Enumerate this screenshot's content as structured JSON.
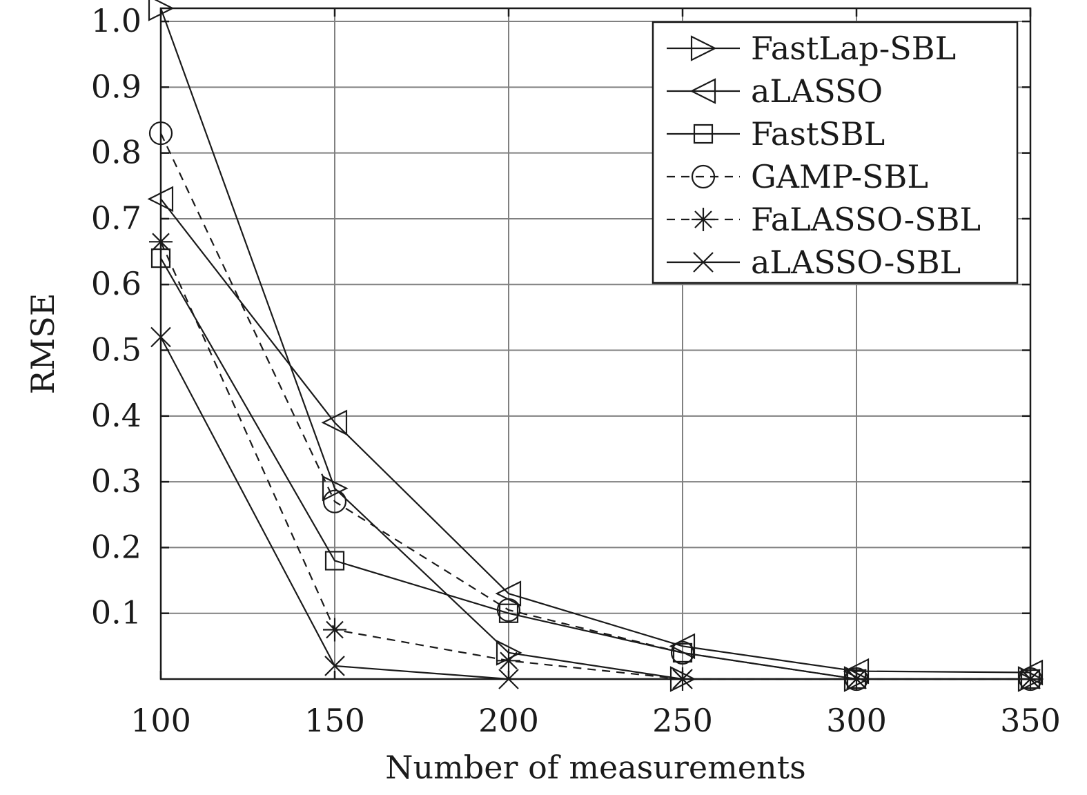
{
  "chart_data": {
    "type": "line",
    "xlabel": "Number of measurements",
    "ylabel": "RMSE",
    "x": [
      100,
      150,
      200,
      250,
      300,
      350
    ],
    "xlim": [
      100,
      350
    ],
    "ylim": [
      0,
      1.02
    ],
    "xticks": [
      100,
      150,
      200,
      250,
      300,
      350
    ],
    "yticks": [
      0.1,
      0.2,
      0.3,
      0.4,
      0.5,
      0.6,
      0.7,
      0.8,
      0.9,
      1.0
    ],
    "xtick_labels": [
      "100",
      "150",
      "200",
      "250",
      "300",
      "350"
    ],
    "ytick_labels": [
      "0.1",
      "0.2",
      "0.3",
      "0.4",
      "0.5",
      "0.6",
      "0.7",
      "0.8",
      "0.9",
      "1.0"
    ],
    "grid": true,
    "legend_position": "top-right",
    "series": [
      {
        "name": "FastLap-SBL",
        "marker": "triangle-right",
        "line": "solid",
        "values": [
          1.02,
          0.29,
          0.04,
          0.0,
          0.0,
          0.0
        ]
      },
      {
        "name": "aLASSO",
        "marker": "triangle-left",
        "line": "solid",
        "values": [
          0.73,
          0.39,
          0.13,
          0.05,
          0.012,
          0.01
        ]
      },
      {
        "name": "FastSBL",
        "marker": "square",
        "line": "solid",
        "values": [
          0.64,
          0.18,
          0.1,
          0.04,
          0.0,
          0.0
        ]
      },
      {
        "name": "GAMP-SBL",
        "marker": "circle",
        "line": "dashed",
        "values": [
          0.83,
          0.27,
          0.105,
          0.04,
          0.0,
          0.0
        ]
      },
      {
        "name": "FaLASSO-SBL",
        "marker": "asterisk",
        "line": "dashed",
        "values": [
          0.665,
          0.075,
          0.028,
          0.0,
          0.0,
          0.0
        ]
      },
      {
        "name": "aLASSO-SBL",
        "marker": "cross",
        "line": "solid",
        "values": [
          0.52,
          0.02,
          0.0,
          0.0,
          0.0,
          0.0
        ]
      }
    ]
  }
}
